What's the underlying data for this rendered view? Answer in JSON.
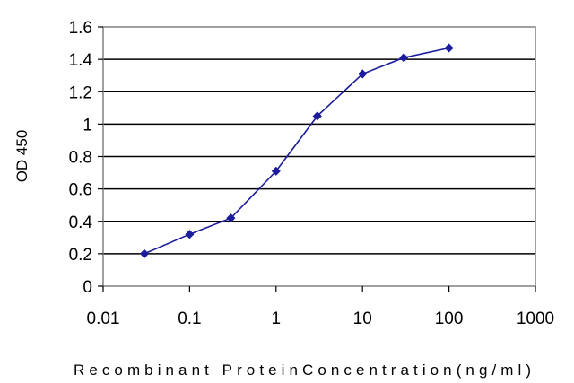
{
  "chart_data": {
    "type": "line",
    "xscale": "log",
    "xlim": [
      0.01,
      1000
    ],
    "ylim": [
      0,
      1.6
    ],
    "xticks": [
      "0.01",
      "0.1",
      "1",
      "10",
      "100",
      "1000"
    ],
    "yticks": [
      "0",
      "0.2",
      "0.4",
      "0.6",
      "0.8",
      "1",
      "1.2",
      "1.4",
      "1.6"
    ],
    "xlabel": "Recombinant ProteinConcentration(ng/ml)",
    "ylabel": "OD 450",
    "grid": "horizontal",
    "legend": "none",
    "series": [
      {
        "x": [
          0.03,
          0.1,
          0.3,
          1,
          3,
          10,
          30,
          100
        ],
        "y": [
          0.2,
          0.32,
          0.42,
          0.71,
          1.05,
          1.31,
          1.41,
          1.47
        ]
      }
    ]
  },
  "colors": {
    "line": "#1c1c9c",
    "marker": "#1c1c9c",
    "grid": "#000000",
    "plot_border": "#808080"
  }
}
